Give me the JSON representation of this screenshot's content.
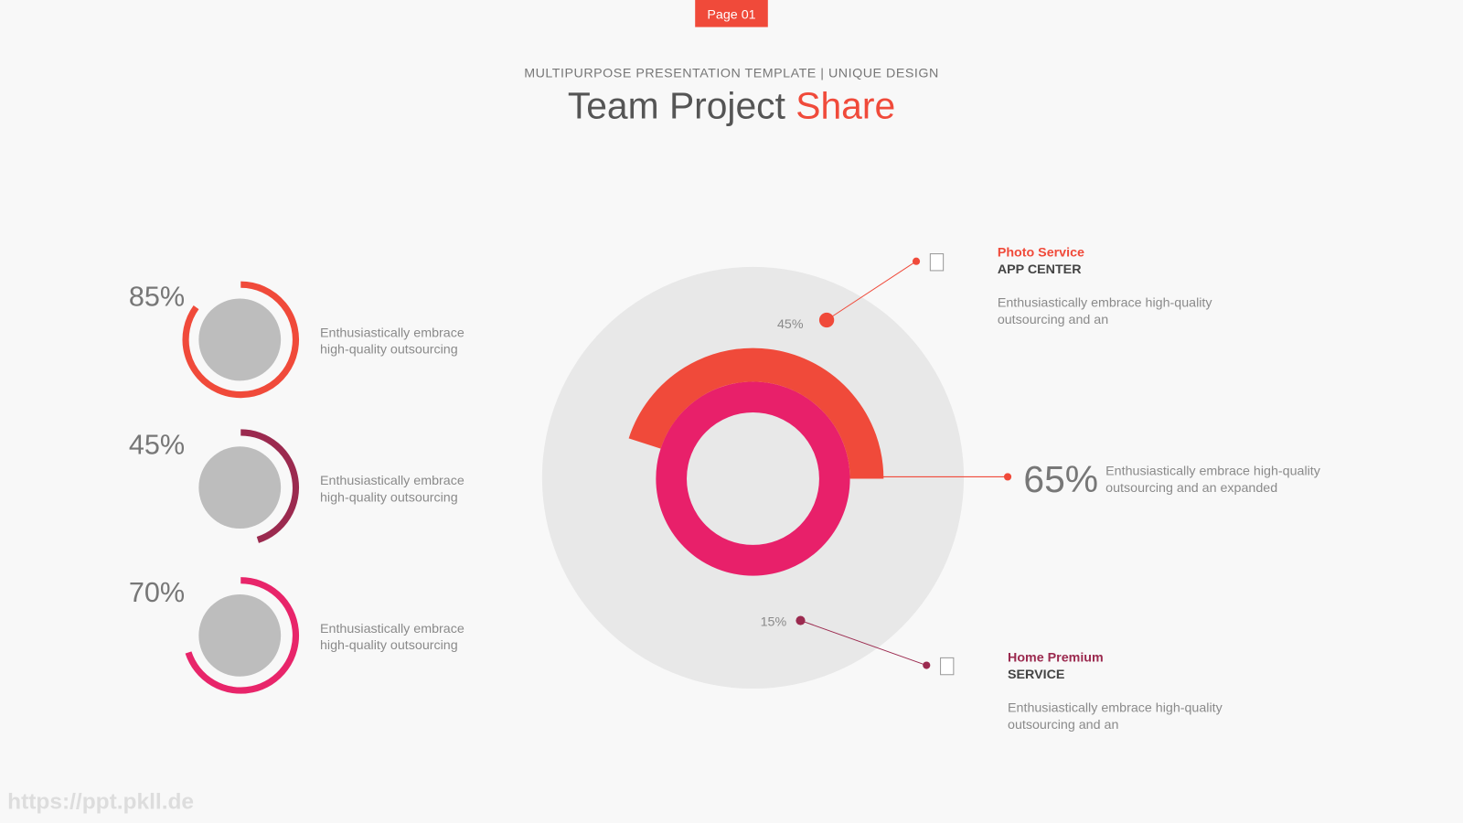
{
  "badge": "Page 01",
  "header": {
    "subtitle": "MULTIPURPOSE PRESENTATION TEMPLATE | UNIQUE DESIGN",
    "title": "Team Project",
    "title_highlight": "Share"
  },
  "progress": [
    {
      "value": 85,
      "label": "85%",
      "color": "#f04a3a",
      "text": [
        "Enthusiastically embrace",
        "high-quality outsourcing"
      ]
    },
    {
      "value": 45,
      "label": "45%",
      "color": "#9b2a4f",
      "text": [
        "Enthusiastically embrace",
        "high-quality outsourcing"
      ]
    },
    {
      "value": 70,
      "label": "70%",
      "color": "#e8256a",
      "text": [
        "Enthusiastically embrace",
        "high-quality outsourcing"
      ]
    }
  ],
  "center": {
    "arc": {
      "value": 45,
      "label": "45%",
      "color": "#f04a3a"
    },
    "top": {
      "name": "Photo Service",
      "subtitle": "APP CENTER",
      "text": [
        "Enthusiastically embrace high-quality",
        "outsourcing and an"
      ]
    },
    "right": {
      "label": "65%",
      "text": [
        "Enthusiastically embrace high-quality",
        "outsourcing and an expanded"
      ]
    },
    "bottom": {
      "label": "15%",
      "name": "Home Premium",
      "subtitle": "SERVICE",
      "text": [
        "Enthusiastically embrace high-quality",
        "outsourcing and an"
      ]
    }
  },
  "watermark": "https://ppt.pkll.de"
}
